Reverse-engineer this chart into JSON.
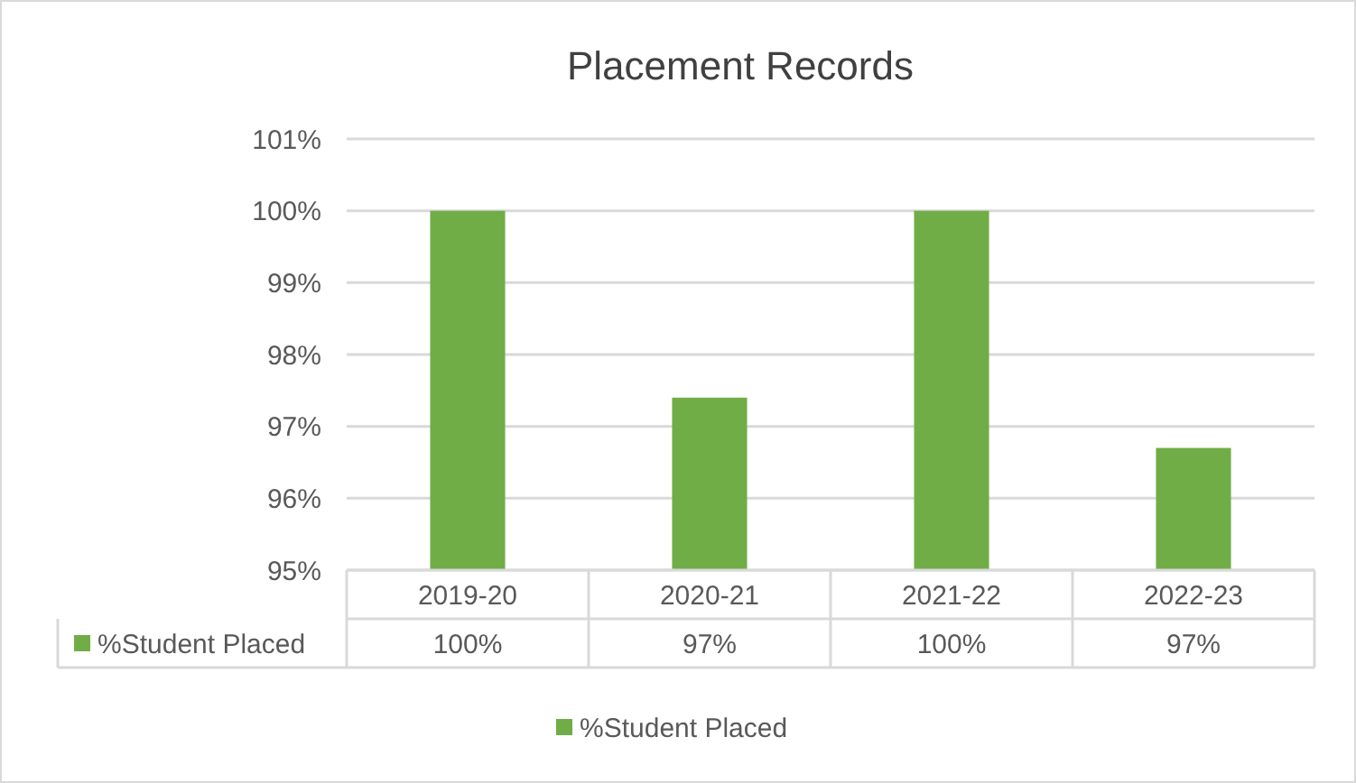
{
  "chart_data": {
    "type": "bar",
    "title": "Placement Records",
    "categories": [
      "2019-20",
      "2020-21",
      "2021-22",
      "2022-23"
    ],
    "series": [
      {
        "name": "%Student Placed",
        "color": "#70ad47",
        "values": [
          100,
          97.4,
          100,
          96.7
        ],
        "value_labels": [
          "100%",
          "97%",
          "100%",
          "97%"
        ]
      }
    ],
    "ylim": [
      95,
      101
    ],
    "yticks": [
      {
        "value": 95,
        "label": "95%"
      },
      {
        "value": 96,
        "label": "96%"
      },
      {
        "value": 97,
        "label": "97%"
      },
      {
        "value": 98,
        "label": "98%"
      },
      {
        "value": 99,
        "label": "99%"
      },
      {
        "value": 100,
        "label": "100%"
      },
      {
        "value": 101,
        "label": "101%"
      }
    ],
    "grid": "y",
    "legend": "bottom"
  }
}
